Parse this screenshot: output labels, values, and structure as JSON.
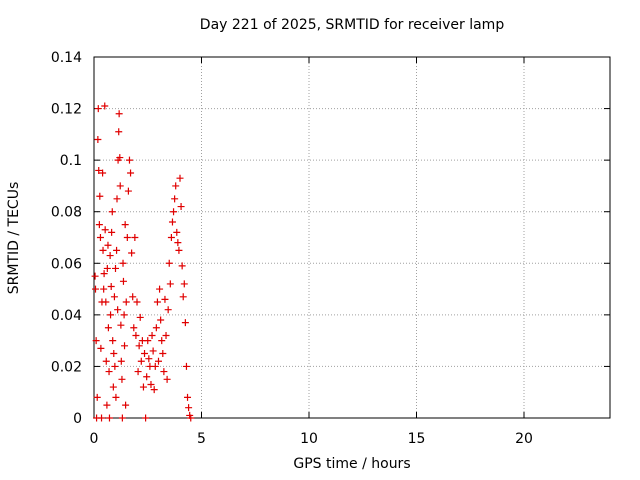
{
  "chart_data": {
    "type": "scatter",
    "title": "Day 221 of 2025, SRMTID for receiver lamp",
    "xlabel": "GPS time / hours",
    "ylabel": "SRMTID / TECUs",
    "xlim": [
      0,
      24
    ],
    "ylim": [
      0,
      0.14
    ],
    "xticks": [
      0,
      5,
      10,
      15,
      20
    ],
    "yticks": [
      0,
      0.02,
      0.04,
      0.06,
      0.08,
      0.1,
      0.12,
      0.14
    ],
    "xtick_labels": [
      "0",
      "5",
      "10",
      "15",
      "20"
    ],
    "ytick_labels": [
      "0",
      "0.02",
      "0.04",
      "0.06",
      "0.08",
      "0.1",
      "0.12",
      "0.14"
    ],
    "grid": true,
    "marker": "+",
    "color": "#e00000",
    "series": [
      {
        "name": "SRMTID",
        "points": [
          [
            0.05,
            0.055
          ],
          [
            0.07,
            0.05
          ],
          [
            0.1,
            0.03
          ],
          [
            0.12,
            0.0
          ],
          [
            0.15,
            0.008
          ],
          [
            0.18,
            0.108
          ],
          [
            0.2,
            0.12
          ],
          [
            0.22,
            0.096
          ],
          [
            0.25,
            0.075
          ],
          [
            0.27,
            0.086
          ],
          [
            0.3,
            0.07
          ],
          [
            0.32,
            0.027
          ],
          [
            0.35,
            0.0
          ],
          [
            0.37,
            0.045
          ],
          [
            0.4,
            0.095
          ],
          [
            0.42,
            0.065
          ],
          [
            0.45,
            0.05
          ],
          [
            0.47,
            0.056
          ],
          [
            0.5,
            0.121
          ],
          [
            0.52,
            0.073
          ],
          [
            0.55,
            0.045
          ],
          [
            0.57,
            0.022
          ],
          [
            0.6,
            0.005
          ],
          [
            0.62,
            0.058
          ],
          [
            0.65,
            0.067
          ],
          [
            0.67,
            0.035
          ],
          [
            0.7,
            0.018
          ],
          [
            0.72,
            0.0
          ],
          [
            0.75,
            0.063
          ],
          [
            0.77,
            0.04
          ],
          [
            0.8,
            0.051
          ],
          [
            0.82,
            0.072
          ],
          [
            0.85,
            0.08
          ],
          [
            0.87,
            0.03
          ],
          [
            0.9,
            0.012
          ],
          [
            0.92,
            0.025
          ],
          [
            0.95,
            0.047
          ],
          [
            0.97,
            0.02
          ],
          [
            1.0,
            0.058
          ],
          [
            1.02,
            0.008
          ],
          [
            1.05,
            0.065
          ],
          [
            1.07,
            0.085
          ],
          [
            1.1,
            0.042
          ],
          [
            1.12,
            0.1
          ],
          [
            1.15,
            0.111
          ],
          [
            1.17,
            0.118
          ],
          [
            1.2,
            0.101
          ],
          [
            1.22,
            0.09
          ],
          [
            1.25,
            0.036
          ],
          [
            1.27,
            0.022
          ],
          [
            1.3,
            0.015
          ],
          [
            1.32,
            0.0
          ],
          [
            1.35,
            0.06
          ],
          [
            1.37,
            0.053
          ],
          [
            1.4,
            0.04
          ],
          [
            1.42,
            0.028
          ],
          [
            1.45,
            0.075
          ],
          [
            1.47,
            0.005
          ],
          [
            1.5,
            0.045
          ],
          [
            1.55,
            0.07
          ],
          [
            1.6,
            0.088
          ],
          [
            1.65,
            0.1
          ],
          [
            1.7,
            0.095
          ],
          [
            1.75,
            0.064
          ],
          [
            1.8,
            0.047
          ],
          [
            1.85,
            0.035
          ],
          [
            1.9,
            0.07
          ],
          [
            1.95,
            0.032
          ],
          [
            2.0,
            0.045
          ],
          [
            2.05,
            0.018
          ],
          [
            2.1,
            0.028
          ],
          [
            2.15,
            0.039
          ],
          [
            2.2,
            0.022
          ],
          [
            2.25,
            0.03
          ],
          [
            2.3,
            0.012
          ],
          [
            2.35,
            0.025
          ],
          [
            2.4,
            0.0
          ],
          [
            2.45,
            0.016
          ],
          [
            2.5,
            0.03
          ],
          [
            2.55,
            0.023
          ],
          [
            2.6,
            0.02
          ],
          [
            2.65,
            0.013
          ],
          [
            2.7,
            0.032
          ],
          [
            2.75,
            0.026
          ],
          [
            2.8,
            0.011
          ],
          [
            2.85,
            0.02
          ],
          [
            2.9,
            0.035
          ],
          [
            2.95,
            0.045
          ],
          [
            3.0,
            0.022
          ],
          [
            3.05,
            0.05
          ],
          [
            3.1,
            0.038
          ],
          [
            3.15,
            0.03
          ],
          [
            3.2,
            0.025
          ],
          [
            3.25,
            0.018
          ],
          [
            3.3,
            0.046
          ],
          [
            3.35,
            0.032
          ],
          [
            3.4,
            0.015
          ],
          [
            3.45,
            0.042
          ],
          [
            3.5,
            0.06
          ],
          [
            3.55,
            0.052
          ],
          [
            3.6,
            0.07
          ],
          [
            3.65,
            0.076
          ],
          [
            3.7,
            0.08
          ],
          [
            3.75,
            0.085
          ],
          [
            3.8,
            0.09
          ],
          [
            3.85,
            0.072
          ],
          [
            3.9,
            0.068
          ],
          [
            3.95,
            0.065
          ],
          [
            4.0,
            0.093
          ],
          [
            4.05,
            0.082
          ],
          [
            4.1,
            0.059
          ],
          [
            4.15,
            0.047
          ],
          [
            4.2,
            0.052
          ],
          [
            4.25,
            0.037
          ],
          [
            4.3,
            0.02
          ],
          [
            4.35,
            0.008
          ],
          [
            4.4,
            0.004
          ],
          [
            4.45,
            0.001
          ],
          [
            4.5,
            0.0
          ]
        ]
      }
    ]
  }
}
